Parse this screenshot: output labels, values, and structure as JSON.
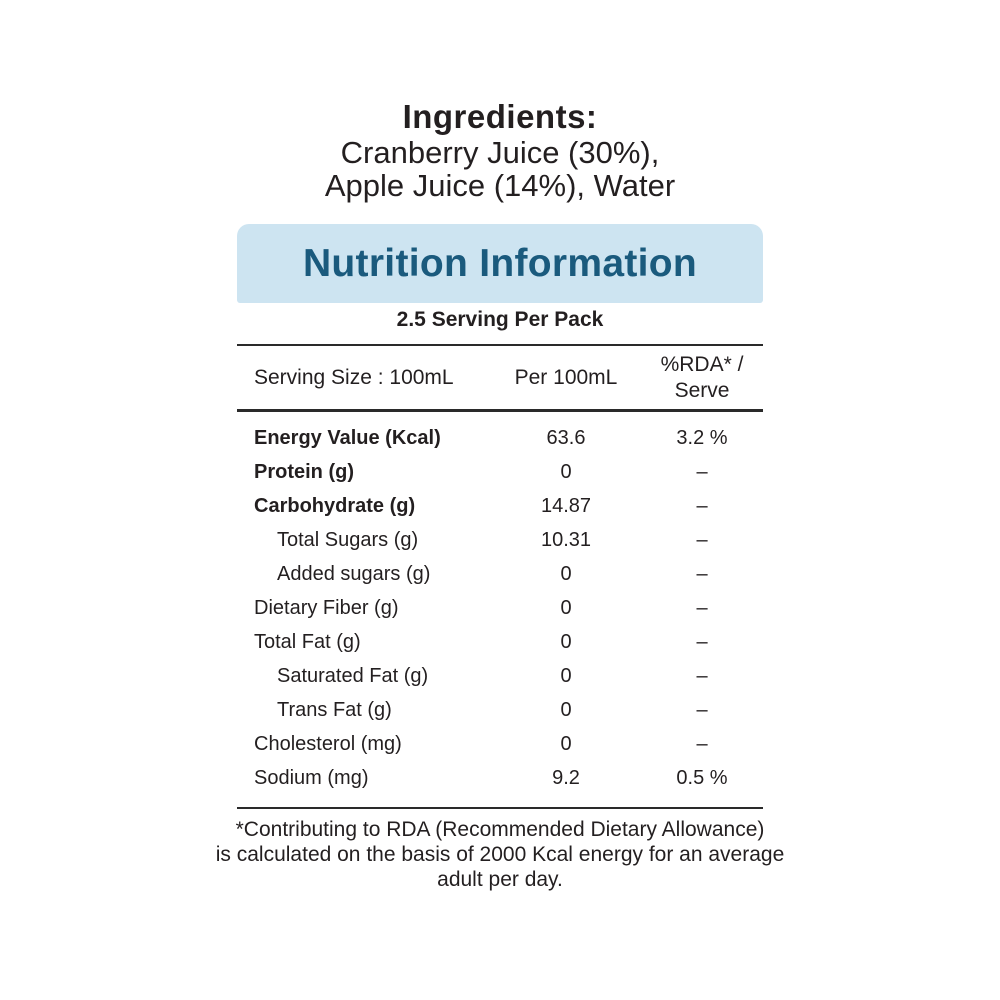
{
  "colors": {
    "accent_bg": "#cde4f1",
    "accent_text": "#1a5a7d",
    "text": "#231f20"
  },
  "ingredients": {
    "title": "Ingredients:",
    "lines": [
      "Cranberry Juice (30%),",
      "Apple Juice (14%), Water"
    ]
  },
  "nutrition": {
    "title": "Nutrition Information",
    "servings": "2.5 Serving Per Pack",
    "columns": {
      "serving_size": "Serving Size : 100mL",
      "per_amount": "Per 100mL",
      "rda_line1": "%RDA* /",
      "rda_line2": "Serve"
    },
    "rows": [
      {
        "label": "Energy Value (Kcal)",
        "per100": "63.6",
        "rda": "3.2 %",
        "bold": true,
        "indent": false
      },
      {
        "label": "Protein (g)",
        "per100": "0",
        "rda": "–",
        "bold": true,
        "indent": false
      },
      {
        "label": "Carbohydrate (g)",
        "per100": "14.87",
        "rda": "–",
        "bold": true,
        "indent": false
      },
      {
        "label": "Total Sugars (g)",
        "per100": "10.31",
        "rda": "–",
        "bold": false,
        "indent": true
      },
      {
        "label": "Added sugars (g)",
        "per100": "0",
        "rda": "–",
        "bold": false,
        "indent": true
      },
      {
        "label": "Dietary Fiber (g)",
        "per100": "0",
        "rda": "–",
        "bold": false,
        "indent": false
      },
      {
        "label": "Total Fat (g)",
        "per100": "0",
        "rda": "–",
        "bold": false,
        "indent": false
      },
      {
        "label": "Saturated Fat (g)",
        "per100": "0",
        "rda": "–",
        "bold": false,
        "indent": true
      },
      {
        "label": "Trans Fat (g)",
        "per100": "0",
        "rda": "–",
        "bold": false,
        "indent": true
      },
      {
        "label": "Cholesterol (mg)",
        "per100": "0",
        "rda": "–",
        "bold": false,
        "indent": false
      },
      {
        "label": "Sodium (mg)",
        "per100": "9.2",
        "rda": "0.5 %",
        "bold": false,
        "indent": false
      }
    ],
    "footnote": [
      "*Contributing to RDA (Recommended Dietary Allowance)",
      "is calculated on the basis of 2000 Kcal energy for an average",
      "adult per day."
    ]
  }
}
